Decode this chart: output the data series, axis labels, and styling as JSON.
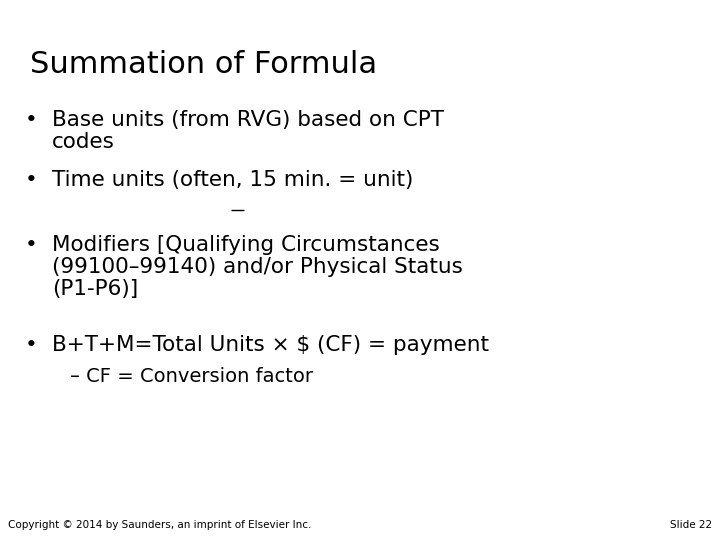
{
  "title": "Summation of Formula",
  "bullet1_line1": "Base units (from RVG) based on CPT",
  "bullet1_line2": "codes",
  "bullet2_full": "Time units (often, 15 min. = unit)",
  "bullet2_pre": "Time units (often, ",
  "bullet2_underline": "15",
  "bullet2_post": " min. = unit)",
  "bullet3_line1": "Modifiers [Qualifying Circumstances",
  "bullet3_line2": "(99100–99140) and/or Physical Status",
  "bullet3_line3": "(P1-P6)]",
  "bullet4": "B+T+M=Total Units × $ (CF) = payment",
  "sub_bullet": "– CF = Conversion factor",
  "copyright": "Copyright © 2014 by Saunders, an imprint of Elsevier Inc.",
  "slide_number": "Slide 22",
  "bg_color": "#ffffff",
  "text_color": "#000000",
  "title_fontsize": 22,
  "bullet_fontsize": 15.5,
  "sub_bullet_fontsize": 14,
  "footer_fontsize": 7.5,
  "bullet_char": "•"
}
